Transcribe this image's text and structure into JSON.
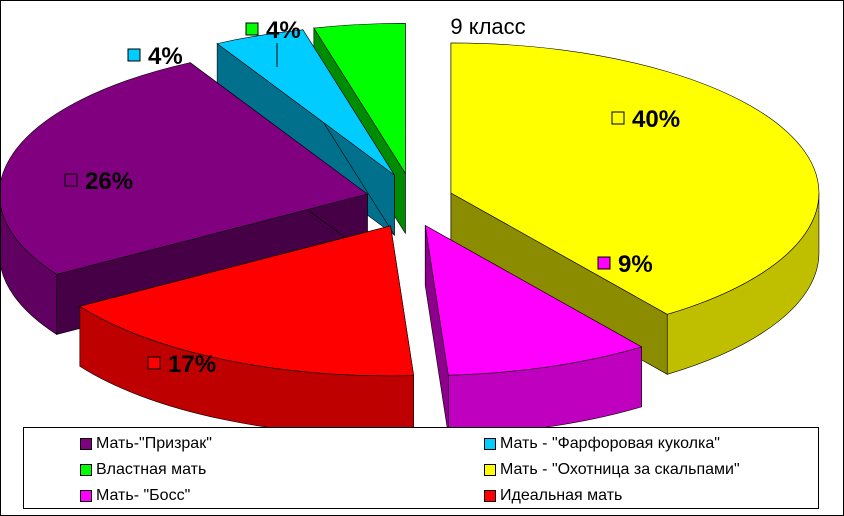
{
  "chart_data": {
    "type": "pie",
    "title": "9 класс",
    "legend_position": "bottom",
    "slices": [
      {
        "label": "Мать - \"Охотница за скальпами\"",
        "value": 40,
        "value_label": "40%",
        "color": "#ffff00"
      },
      {
        "label": "Мать- \"Босс\"",
        "value": 9,
        "value_label": "9%",
        "color": "#ff00ff"
      },
      {
        "label": "Идеальная мать",
        "value": 17,
        "value_label": "17%",
        "color": "#ff0000"
      },
      {
        "label": "Мать-\"Призрак\"",
        "value": 26,
        "value_label": "26%",
        "color": "#800080"
      },
      {
        "label": "Мать - \"Фарфоровая куколка\"",
        "value": 4,
        "value_label": "4%",
        "color": "#00ccff"
      },
      {
        "label": "Властная мать",
        "value": 4,
        "value_label": "4%",
        "color": "#00ff00"
      }
    ],
    "legend": [
      {
        "label": "Мать-\"Призрак\"",
        "color": "#800080"
      },
      {
        "label": "Мать - \"Фарфоровая куколка\"",
        "color": "#00ccff"
      },
      {
        "label": "Властная мать",
        "color": "#00ff00"
      },
      {
        "label": "Мать - \"Охотница за скальпами\"",
        "color": "#ffff00"
      },
      {
        "label": "Мать- \"Босс\"",
        "color": "#ff00ff"
      },
      {
        "label": "Идеальная мать",
        "color": "#ff0000"
      }
    ]
  }
}
